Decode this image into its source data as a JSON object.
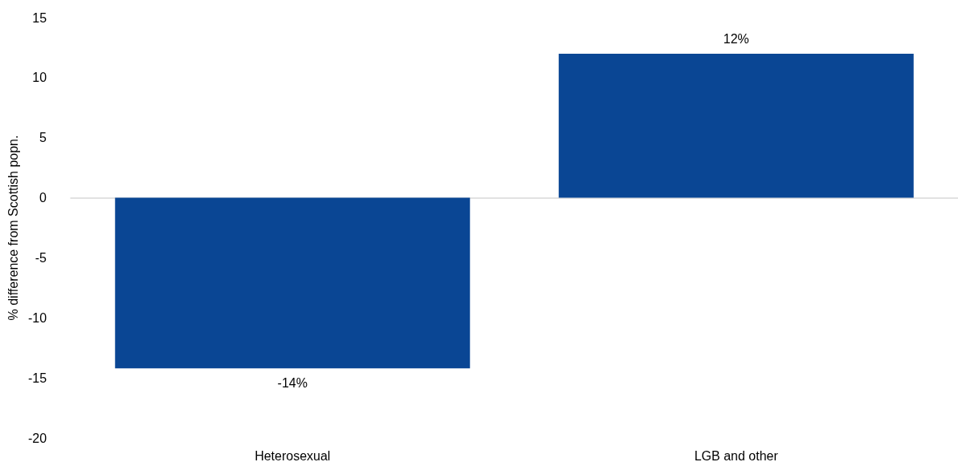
{
  "chart_data": {
    "type": "bar",
    "ylabel": "% difference from Scottish popn.",
    "categories": [
      "Heterosexual",
      "LGB and other"
    ],
    "values": [
      -14.2,
      12
    ],
    "value_labels": [
      "-14%",
      "12%"
    ],
    "color": "#0a4694",
    "ylim": [
      -20,
      15
    ],
    "yticks": [
      -20,
      -15,
      -10,
      -5,
      0,
      5,
      10,
      15
    ],
    "tick_labels": "xy"
  }
}
